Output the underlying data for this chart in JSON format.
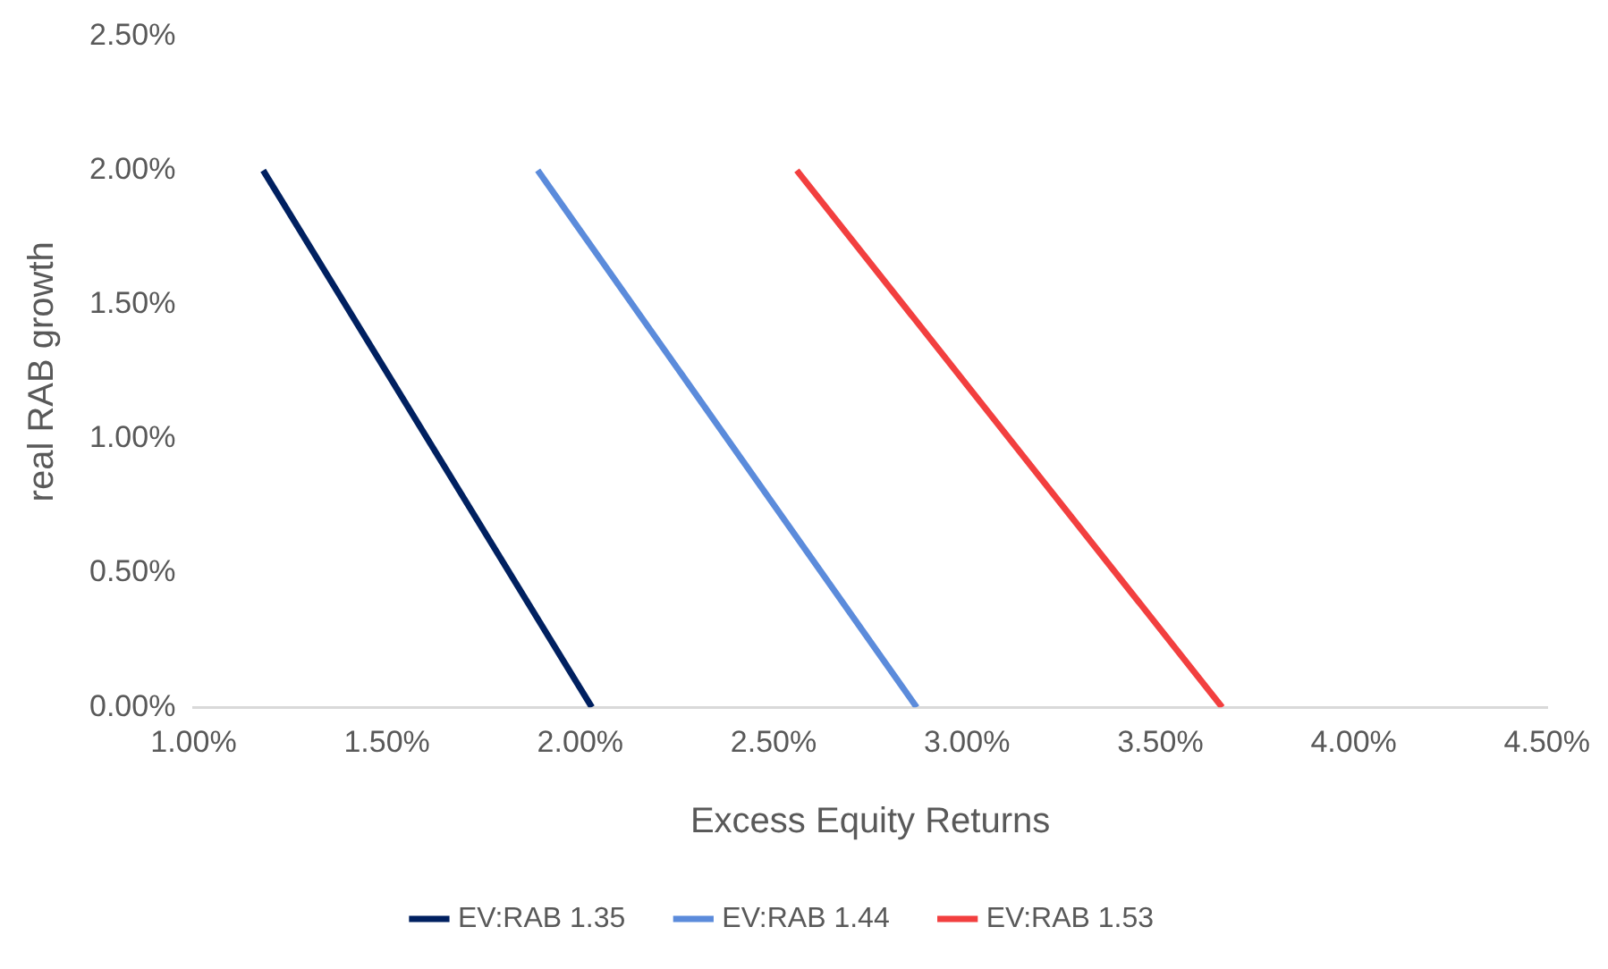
{
  "chart_data": {
    "type": "line",
    "xlabel": "Excess Equity Returns",
    "ylabel": "real RAB growth",
    "xlim": [
      1.0,
      4.5
    ],
    "xticks": [
      {
        "value": 1.0,
        "label": "1.00%"
      },
      {
        "value": 1.5,
        "label": "1.50%"
      },
      {
        "value": 2.0,
        "label": "2.00%"
      },
      {
        "value": 2.5,
        "label": "2.50%"
      },
      {
        "value": 3.0,
        "label": "3.00%"
      },
      {
        "value": 3.5,
        "label": "3.50%"
      },
      {
        "value": 4.0,
        "label": "4.00%"
      },
      {
        "value": 4.5,
        "label": "4.50%"
      }
    ],
    "ylim": [
      0,
      2.5
    ],
    "yticks": [
      {
        "value": 0,
        "label": "0.00%"
      },
      {
        "value": 0.5,
        "label": "0.50%"
      },
      {
        "value": 1.0,
        "label": "1.00%"
      },
      {
        "value": 1.5,
        "label": "1.50%"
      },
      {
        "value": 2.0,
        "label": "2.00%"
      },
      {
        "value": 2.5,
        "label": "2.50%"
      }
    ],
    "grid": false,
    "legend": "bottom",
    "marker": "none",
    "line_style": "solid",
    "series": [
      {
        "name": "EV:RAB 1.35",
        "color": "#002060",
        "x": [
          1.18,
          2.03
        ],
        "values": [
          2.0,
          0.0
        ]
      },
      {
        "name": "EV:RAB 1.44",
        "color": "#5b8bdb",
        "x": [
          1.89,
          2.87
        ],
        "values": [
          2.0,
          0.0
        ]
      },
      {
        "name": "EV:RAB 1.53",
        "color": "#f23f3f",
        "x": [
          2.56,
          3.66
        ],
        "values": [
          2.0,
          0.0
        ]
      }
    ]
  }
}
